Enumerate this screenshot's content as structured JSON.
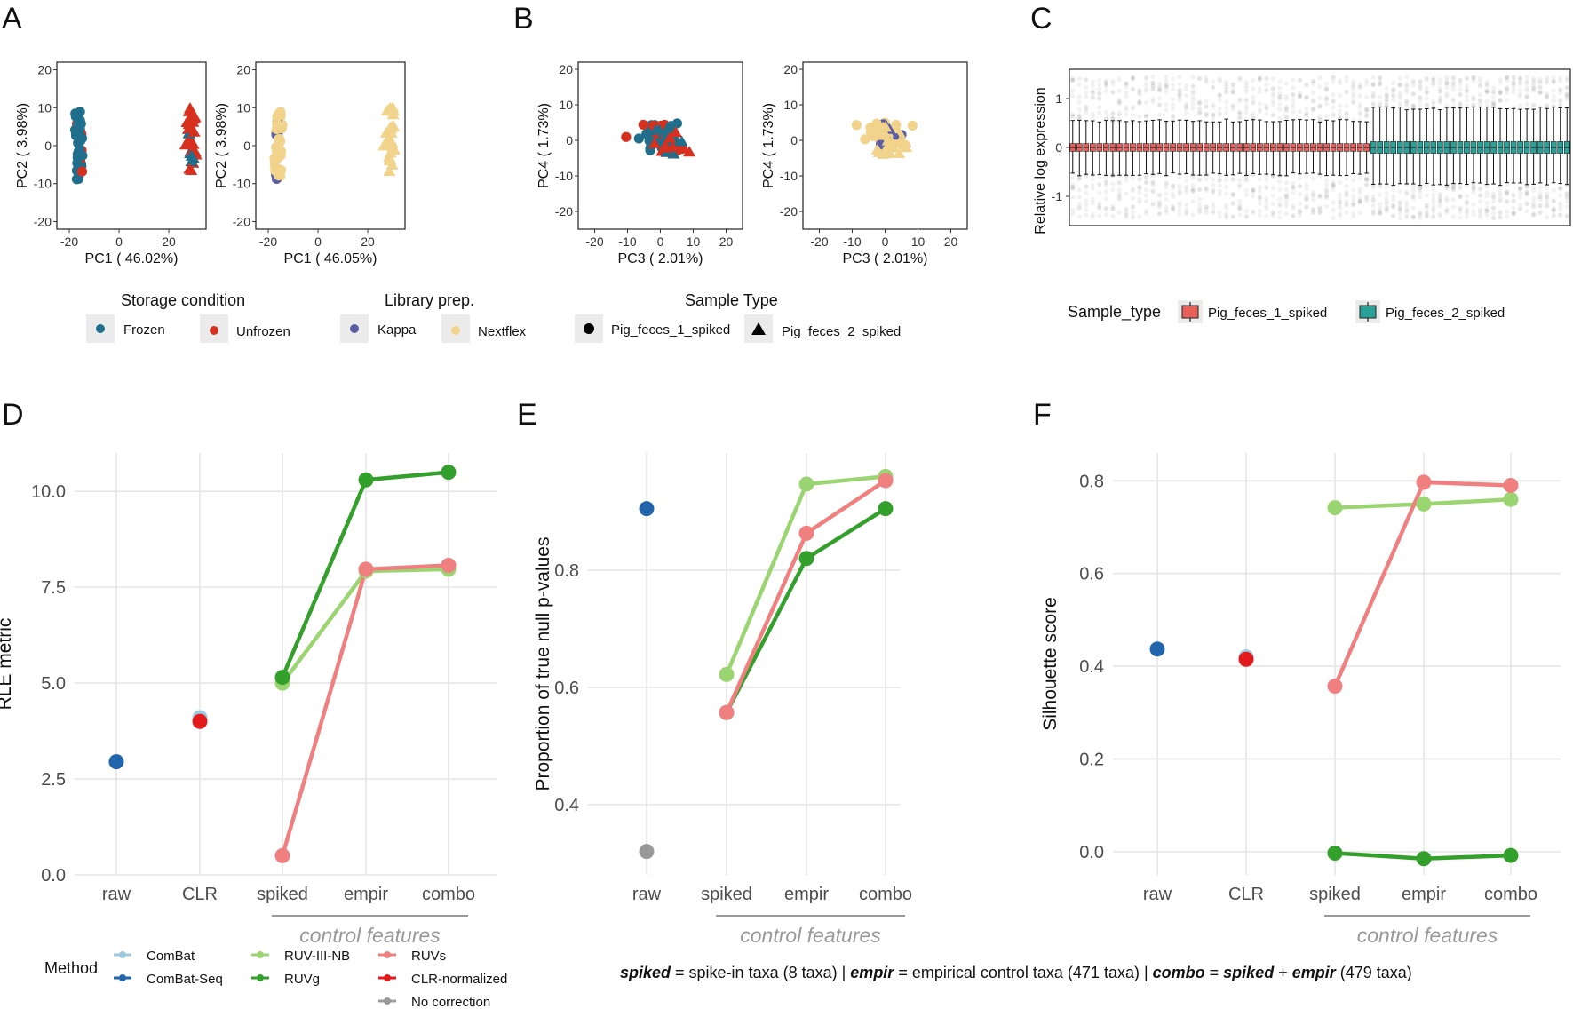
{
  "panel_letters": [
    "A",
    "B",
    "C",
    "D",
    "E",
    "F"
  ],
  "colors": {
    "frozen": "#1f6e8c",
    "unfrozen": "#d7301f",
    "kappa": "#5b5ea6",
    "nextflex": "#f2d38b",
    "pig1_box": "#e8605a",
    "pig2_box": "#2aa198",
    "ComBat": "#9ecae1",
    "ComBat-Seq": "#2166ac",
    "RUV-III-NB": "#9bd571",
    "RUVg": "#33a02c",
    "RUVs": "#f08080",
    "CLR-normalized": "#e31a1c",
    "No correction": "#999999"
  },
  "legends": {
    "storage": {
      "title": "Storage condition",
      "items": [
        "Frozen",
        "Unfrozen"
      ]
    },
    "library": {
      "title": "Library prep.",
      "items": [
        "Kappa",
        "Nextflex"
      ]
    },
    "sample": {
      "title": "Sample Type",
      "items": [
        "Pig_feces_1_spiked",
        "Pig_feces_2_spiked"
      ]
    },
    "rle": {
      "title": "Sample_type",
      "items": [
        "Pig_feces_1_spiked",
        "Pig_feces_2_spiked"
      ]
    },
    "method": {
      "title": "Method",
      "items": [
        "ComBat",
        "ComBat-Seq",
        "RUV-III-NB",
        "RUVg",
        "RUVs",
        "CLR-normalized",
        "No correction"
      ]
    }
  },
  "control_features_label": "control features",
  "footnote": {
    "t1": "spiked",
    "t2": " = spike-in taxa (8 taxa) | ",
    "t3": "empir",
    "t4": " = empirical control taxa (471 taxa) | ",
    "t5": "combo",
    "t6": " = ",
    "t7": "spiked",
    "t8": " + ",
    "t9": "empir",
    "t10": " (479 taxa)"
  },
  "chart_data": [
    {
      "id": "A1",
      "type": "scatter",
      "xlabel": "PC1 ( 46.02%)",
      "ylabel": "PC2 ( 3.98%)",
      "xlim": [
        -25,
        35
      ],
      "ylim": [
        -22,
        22
      ],
      "xticks": [
        -20,
        0,
        20
      ],
      "yticks": [
        -20,
        -10,
        0,
        10,
        20
      ],
      "color_by": "storage",
      "clusters": [
        {
          "shape": "circle",
          "cx": -16,
          "cy": 0,
          "spread_x": 1.6,
          "spread_y": 9,
          "n": 45,
          "colors": [
            "Frozen",
            "Unfrozen"
          ],
          "mix": 0.2
        },
        {
          "shape": "triangle",
          "cx": 29,
          "cy": 2,
          "spread_x": 2.2,
          "spread_y": 9,
          "n": 30,
          "colors": [
            "Unfrozen",
            "Frozen"
          ],
          "mix": 0.25
        }
      ]
    },
    {
      "id": "A2",
      "type": "scatter",
      "xlabel": "PC1 ( 46.05%)",
      "ylabel": "PC2 ( 3.98%)",
      "xlim": [
        -25,
        35
      ],
      "ylim": [
        -22,
        22
      ],
      "xticks": [
        -20,
        0,
        20
      ],
      "yticks": [
        -20,
        -10,
        0,
        10,
        20
      ],
      "color_by": "library",
      "clusters": [
        {
          "shape": "circle",
          "cx": -16,
          "cy": 0,
          "spread_x": 1.6,
          "spread_y": 9,
          "n": 45,
          "colors": [
            "Nextflex",
            "Kappa"
          ],
          "mix": 0.15
        },
        {
          "shape": "triangle",
          "cx": 29,
          "cy": 2,
          "spread_x": 2.2,
          "spread_y": 9,
          "n": 30,
          "colors": [
            "Nextflex",
            "Nextflex"
          ],
          "mix": 0
        }
      ]
    },
    {
      "id": "B1",
      "type": "scatter",
      "xlabel": "PC3 ( 2.01%)",
      "ylabel": "PC4 ( 1.73%)",
      "xlim": [
        -25,
        25
      ],
      "ylim": [
        -25,
        22
      ],
      "xticks": [
        -20,
        -10,
        0,
        10,
        20
      ],
      "yticks": [
        -20,
        -10,
        0,
        10,
        20
      ],
      "color_by": "storage",
      "clusters": [
        {
          "shape": "circle",
          "cx": 0,
          "cy": 1,
          "spread_x": 6,
          "spread_y": 4,
          "n": 40,
          "colors": [
            "Frozen",
            "Unfrozen"
          ],
          "mix": 0.35
        },
        {
          "shape": "triangle",
          "cx": 2,
          "cy": 0,
          "spread_x": 5,
          "spread_y": 4,
          "n": 25,
          "colors": [
            "Unfrozen",
            "Frozen"
          ],
          "mix": 0.4
        }
      ]
    },
    {
      "id": "B2",
      "type": "scatter",
      "xlabel": "PC3 ( 2.01%)",
      "ylabel": "PC4 ( 1.73%)",
      "xlim": [
        -25,
        25
      ],
      "ylim": [
        -25,
        22
      ],
      "xticks": [
        -20,
        -10,
        0,
        10,
        20
      ],
      "yticks": [
        -20,
        -10,
        0,
        10,
        20
      ],
      "color_by": "library",
      "clusters": [
        {
          "shape": "circle",
          "cx": 0,
          "cy": 1,
          "spread_x": 6,
          "spread_y": 4,
          "n": 40,
          "colors": [
            "Nextflex",
            "Kappa"
          ],
          "mix": 0.25
        },
        {
          "shape": "triangle",
          "cx": 2,
          "cy": 0,
          "spread_x": 5,
          "spread_y": 4,
          "n": 25,
          "colors": [
            "Nextflex",
            "Kappa"
          ],
          "mix": 0.1
        }
      ]
    },
    {
      "id": "C",
      "type": "box",
      "ylabel": "Relative log expression",
      "ylim": [
        -1.6,
        1.6
      ],
      "yticks": [
        -1,
        0,
        1
      ],
      "groups": [
        {
          "sample": "Pig_feces_1_spiked",
          "n": 45,
          "median": 0.0,
          "q1": -0.08,
          "q3": 0.08,
          "wlo": -0.55,
          "whi": 0.55
        },
        {
          "sample": "Pig_feces_2_spiked",
          "n": 30,
          "median": 0.0,
          "q1": -0.12,
          "q3": 0.12,
          "wlo": -0.75,
          "whi": 0.8
        }
      ]
    },
    {
      "id": "D",
      "type": "line",
      "ylabel": "RLE metric",
      "categories": [
        "raw",
        "CLR",
        "spiked",
        "empir",
        "combo"
      ],
      "ylim": [
        0,
        11
      ],
      "yticks": [
        0.0,
        2.5,
        5.0,
        7.5,
        10.0
      ],
      "series": [
        {
          "name": "ComBat",
          "values": [
            null,
            4.1,
            null,
            null,
            null
          ]
        },
        {
          "name": "ComBat-Seq",
          "values": [
            2.95,
            null,
            null,
            null,
            null
          ]
        },
        {
          "name": "CLR-normalized",
          "values": [
            null,
            4.0,
            null,
            null,
            null
          ]
        },
        {
          "name": "RUV-III-NB",
          "values": [
            null,
            null,
            5.0,
            7.92,
            7.97
          ]
        },
        {
          "name": "RUVs",
          "values": [
            null,
            null,
            0.5,
            7.97,
            8.07
          ]
        },
        {
          "name": "RUVg",
          "values": [
            null,
            null,
            5.15,
            10.3,
            10.5
          ]
        }
      ]
    },
    {
      "id": "E",
      "type": "line",
      "ylabel": "Proportion of true null p-values",
      "categories": [
        "raw",
        "spiked",
        "empir",
        "combo"
      ],
      "ylim": [
        0.28,
        1.0
      ],
      "yticks": [
        0.4,
        0.6,
        0.8
      ],
      "series": [
        {
          "name": "ComBat-Seq",
          "values": [
            0.905,
            null,
            null,
            null
          ]
        },
        {
          "name": "No correction",
          "values": [
            0.32,
            null,
            null,
            null
          ]
        },
        {
          "name": "RUV-III-NB",
          "values": [
            null,
            0.622,
            0.947,
            0.96
          ]
        },
        {
          "name": "RUVg",
          "values": [
            null,
            0.557,
            0.82,
            0.905
          ]
        },
        {
          "name": "RUVs",
          "values": [
            null,
            0.557,
            0.863,
            0.953
          ]
        }
      ]
    },
    {
      "id": "F",
      "type": "line",
      "ylabel": "Silhouette score",
      "categories": [
        "raw",
        "CLR",
        "spiked",
        "empir",
        "combo"
      ],
      "ylim": [
        -0.05,
        0.86
      ],
      "yticks": [
        0.0,
        0.2,
        0.4,
        0.6,
        0.8
      ],
      "series": [
        {
          "name": "ComBat-Seq",
          "values": [
            0.437,
            null,
            null,
            null,
            null
          ]
        },
        {
          "name": "ComBat",
          "values": [
            null,
            0.42,
            null,
            null,
            null
          ]
        },
        {
          "name": "CLR-normalized",
          "values": [
            null,
            0.415,
            null,
            null,
            null
          ]
        },
        {
          "name": "RUV-III-NB",
          "values": [
            null,
            null,
            0.742,
            0.75,
            0.76
          ]
        },
        {
          "name": "RUVs",
          "values": [
            null,
            null,
            0.357,
            0.797,
            0.79
          ]
        },
        {
          "name": "RUVg",
          "values": [
            null,
            null,
            -0.003,
            -0.015,
            -0.008
          ]
        }
      ]
    }
  ]
}
